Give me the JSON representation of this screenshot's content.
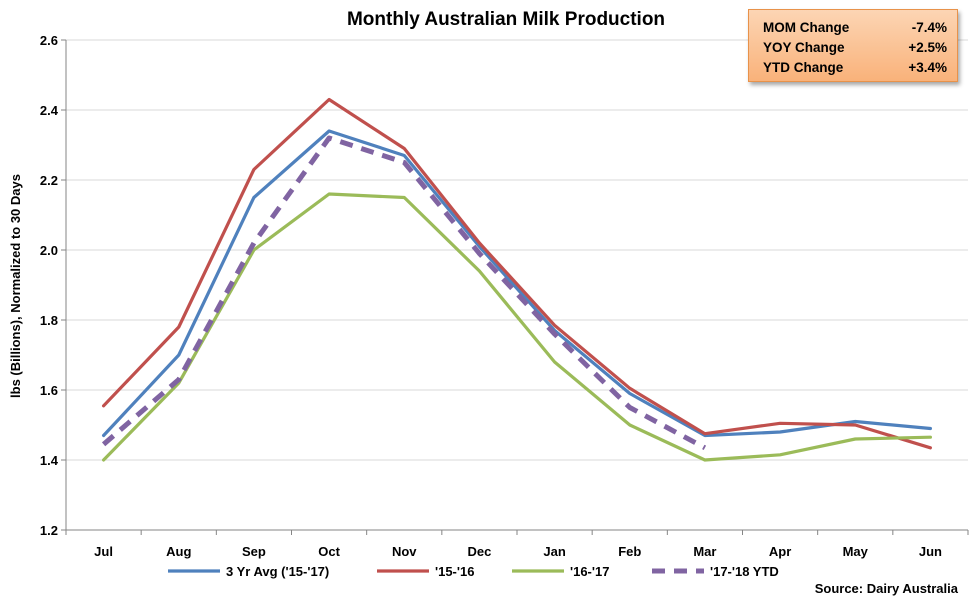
{
  "chart_data": {
    "type": "line",
    "title": "Monthly Australian Milk Production",
    "ylabel": "lbs (Billions), Normalized to 30 Days",
    "xlabel": "",
    "categories": [
      "Jul",
      "Aug",
      "Sep",
      "Oct",
      "Nov",
      "Dec",
      "Jan",
      "Feb",
      "Mar",
      "Apr",
      "May",
      "Jun"
    ],
    "ylim": [
      1.2,
      2.6
    ],
    "yticks": [
      "1.2",
      "1.4",
      "1.6",
      "1.8",
      "2.0",
      "2.2",
      "2.4",
      "2.6"
    ],
    "grid": true,
    "legend_position": "bottom",
    "series": [
      {
        "name": "3 Yr Avg ('15-'17)",
        "color": "#4f81bd",
        "dash": false,
        "values": [
          1.47,
          1.7,
          2.15,
          2.34,
          2.27,
          2.01,
          1.77,
          1.59,
          1.47,
          1.48,
          1.51,
          1.49
        ]
      },
      {
        "name": "'15-'16",
        "color": "#c0504d",
        "dash": false,
        "values": [
          1.555,
          1.78,
          2.23,
          2.43,
          2.29,
          2.02,
          1.785,
          1.605,
          1.475,
          1.505,
          1.5,
          1.435
        ]
      },
      {
        "name": "'16-'17",
        "color": "#9bbb59",
        "dash": false,
        "values": [
          1.4,
          1.62,
          2.0,
          2.16,
          2.15,
          1.94,
          1.68,
          1.5,
          1.4,
          1.415,
          1.46,
          1.465
        ]
      },
      {
        "name": "'17-'18 YTD",
        "color": "#8064a2",
        "dash": true,
        "values": [
          1.445,
          1.63,
          2.02,
          2.32,
          2.25,
          1.99,
          1.76,
          1.55,
          1.435,
          null,
          null,
          null
        ]
      }
    ],
    "source": "Source: Dairy Australia"
  },
  "change_box": {
    "rows": [
      {
        "label": "MOM Change",
        "value": "-7.4%"
      },
      {
        "label": "YOY Change",
        "value": "+2.5%"
      },
      {
        "label": "YTD Change",
        "value": "+3.4%"
      }
    ]
  }
}
